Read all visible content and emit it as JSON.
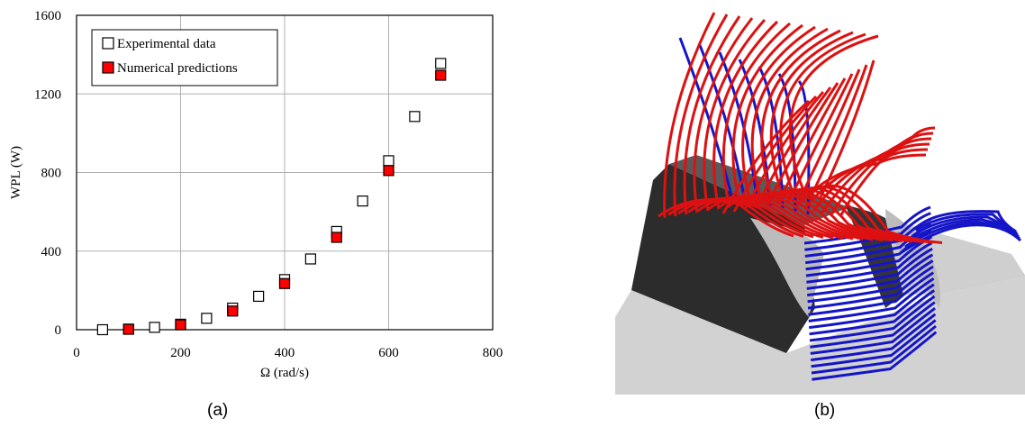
{
  "chart_data": {
    "type": "scatter",
    "xlabel": "Ω (rad/s)",
    "ylabel": "WPL (W)",
    "xlim": [
      0,
      800
    ],
    "ylim": [
      0,
      1600
    ],
    "xticks": [
      "0",
      "200",
      "400",
      "600",
      "800"
    ],
    "yticks": [
      "0",
      "400",
      "800",
      "1200",
      "1600"
    ],
    "grid": true,
    "legend_position": "top-left",
    "series": [
      {
        "name": "Experimental data",
        "marker": "open-square",
        "color": "#000000",
        "points": [
          [
            50,
            0
          ],
          [
            100,
            3
          ],
          [
            150,
            12
          ],
          [
            200,
            28
          ],
          [
            250,
            58
          ],
          [
            300,
            110
          ],
          [
            350,
            170
          ],
          [
            400,
            255
          ],
          [
            450,
            360
          ],
          [
            500,
            500
          ],
          [
            550,
            655
          ],
          [
            600,
            860
          ],
          [
            650,
            1085
          ],
          [
            700,
            1355
          ]
        ]
      },
      {
        "name": "Numerical predictions",
        "marker": "filled-square",
        "color": "#ff0000",
        "points": [
          [
            100,
            2
          ],
          [
            200,
            25
          ],
          [
            300,
            95
          ],
          [
            400,
            235
          ],
          [
            500,
            470
          ],
          [
            600,
            810
          ],
          [
            700,
            1295
          ]
        ]
      }
    ]
  },
  "captions": {
    "a": "(a)",
    "b": "(b)"
  },
  "colors": {
    "flow_red": "#dd1111",
    "flow_blue": "#1515c8",
    "tooth_dark": "#2c2c2c",
    "tooth_light": "#d2d2d2",
    "foam": "#bcbcbc"
  }
}
